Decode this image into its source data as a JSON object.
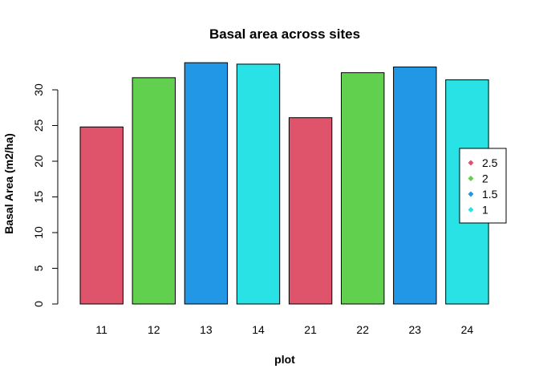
{
  "chart_data": {
    "type": "bar",
    "title": "Basal area across sites",
    "xlabel": "plot",
    "ylabel": "Basal Area (m2/ha)",
    "ylim": [
      0,
      34
    ],
    "yticks": [
      0,
      5,
      10,
      15,
      20,
      25,
      30
    ],
    "categories": [
      "11",
      "12",
      "13",
      "14",
      "21",
      "22",
      "23",
      "24"
    ],
    "values": [
      24.8,
      31.7,
      33.8,
      33.6,
      26.1,
      32.4,
      33.2,
      31.4
    ],
    "bar_colors": [
      "#DF536B",
      "#61D04F",
      "#2297E6",
      "#28E2E5",
      "#DF536B",
      "#61D04F",
      "#2297E6",
      "#28E2E5"
    ],
    "grid": false,
    "legend": {
      "placement": "right",
      "entries": [
        {
          "label": "2.5",
          "color": "#DF536B"
        },
        {
          "label": "2",
          "color": "#61D04F"
        },
        {
          "label": "1.5",
          "color": "#2297E6"
        },
        {
          "label": "1",
          "color": "#28E2E5"
        }
      ]
    }
  }
}
